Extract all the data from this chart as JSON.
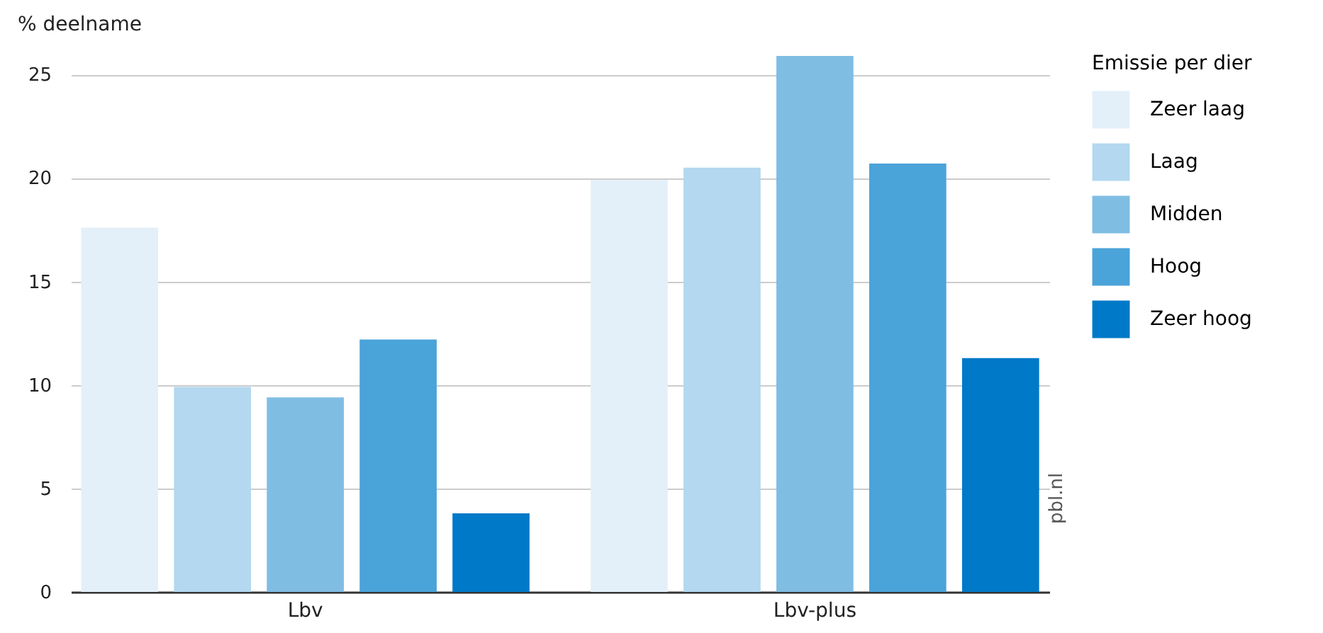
{
  "chart_data": {
    "type": "bar",
    "ylabel": "% deelname",
    "legend_title": "Emissie per dier",
    "categories": [
      "Lbv",
      "Lbv-plus"
    ],
    "series": [
      {
        "name": "Zeer laag",
        "color": "#e3f0fa",
        "values": [
          17.6,
          19.9
        ]
      },
      {
        "name": "Laag",
        "color": "#b3d8f0",
        "values": [
          9.9,
          20.5
        ]
      },
      {
        "name": "Midden",
        "color": "#80bde3",
        "values": [
          9.4,
          25.9
        ]
      },
      {
        "name": "Hoog",
        "color": "#4aa3d9",
        "values": [
          12.2,
          20.7
        ]
      },
      {
        "name": "Zeer hoog",
        "color": "#0079c8",
        "values": [
          3.8,
          11.3
        ]
      }
    ],
    "ylim": [
      0,
      26
    ],
    "yticks": [
      0,
      5,
      10,
      15,
      20,
      25
    ],
    "grid": "y",
    "legend": "top right",
    "annotations": [
      "pbl.nl"
    ]
  }
}
